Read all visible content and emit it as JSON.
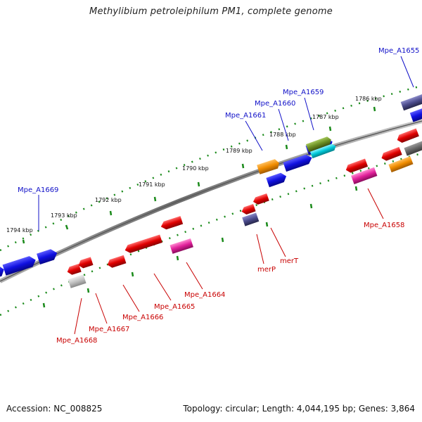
{
  "title": "Methylibium petroleiphilum PM1, complete genome",
  "footer": {
    "accession": "Accession: NC_008825",
    "topology": "Topology: circular; Length: 4,044,195 bp; Genes: 3,864"
  },
  "ticks": {
    "k1786": "1786 kbp",
    "k1787": "1787 kbp",
    "k1788": "1788 kbp",
    "k1789": "1789 kbp",
    "k1790": "1790 kbp",
    "k1791": "1791 kbp",
    "k1792": "1792 kbp",
    "k1793": "1793 kbp",
    "k1794": "1794 kbp"
  },
  "genes": {
    "mpe_a1655": "Mpe_A1655",
    "mpe_a1659": "Mpe_A1659",
    "mpe_a1660": "Mpe_A1660",
    "mpe_a1661": "Mpe_A1661",
    "mpe_a1669": "Mpe_A1669",
    "mpe_a1658": "Mpe_A1658",
    "merT": "merT",
    "merP": "merP",
    "mpe_a1664": "Mpe_A1664",
    "mpe_a1665": "Mpe_A1665",
    "mpe_a1666": "Mpe_A1666",
    "mpe_a1667": "Mpe_A1667",
    "mpe_a1668": "Mpe_A1668"
  },
  "colors": {
    "blue_gene": "#1010e0",
    "red_gene": "#e00000",
    "magenta_gene": "#e0209a",
    "orange_gene": "#f08c00",
    "olive_gene": "#6b8e23",
    "cyan_gene": "#00c8d8",
    "slate_gene": "#4b4b8c",
    "gray_gene": "#c0c0c0",
    "backbone": "#7a7a7a",
    "tick_green": "#1a8a1a",
    "label_blue": "#1010c8",
    "label_red": "#c80000"
  }
}
